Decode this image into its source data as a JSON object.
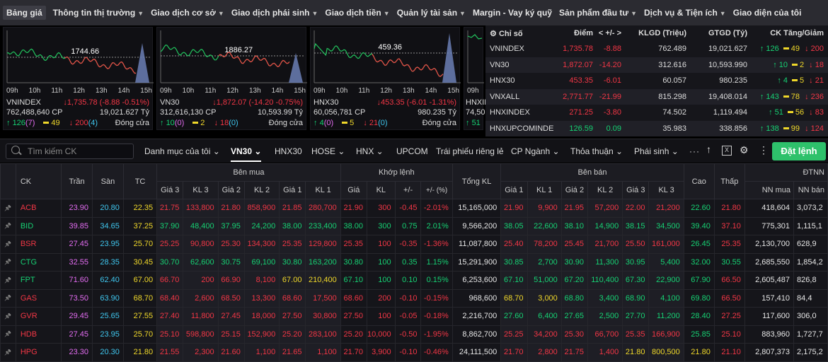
{
  "nav": [
    {
      "label": "Bảng giá",
      "caret": false,
      "active": true
    },
    {
      "label": "Thông tin thị trường",
      "caret": true
    },
    {
      "label": "Giao dịch cơ sở",
      "caret": true
    },
    {
      "label": "Giao dịch phái sinh",
      "caret": true
    },
    {
      "label": "Giao dịch tiền",
      "caret": true
    },
    {
      "label": "Quản lý tài sản",
      "caret": true
    },
    {
      "label": "Margin - Vay ký quỹ",
      "caret": false
    },
    {
      "label": "Sản phẩm đầu tư",
      "caret": true
    },
    {
      "label": "Dịch vụ & Tiện ích",
      "caret": true
    },
    {
      "label": "Giao diện của tôi",
      "caret": false
    }
  ],
  "charts": [
    {
      "ref_label": "1744.66",
      "hours": [
        "09h",
        "10h",
        "11h",
        "12h",
        "13h",
        "14h",
        "15h"
      ],
      "name": "VNINDEX",
      "change": "1,735.78 (-8.88 -0.51%)",
      "volume": "762,488,640 CP",
      "value": "19,021.627 Tỷ",
      "up": "126",
      "up_ce": "(7)",
      "ref_count": "49",
      "down": "200",
      "down_fl": "(4)",
      "status": "Đóng cửa"
    },
    {
      "ref_label": "1886.27",
      "hours": [
        "09h",
        "10h",
        "11h",
        "12h",
        "13h",
        "14h",
        "15h"
      ],
      "name": "VN30",
      "change": "1,872.07 (-14.20 -0.75%)",
      "volume": "312,616,130 CP",
      "value": "10,593.99 Tỷ",
      "up": "10",
      "up_ce": "(0)",
      "ref_count": "2",
      "down": "18",
      "down_fl": "(0)",
      "status": "Đóng cửa"
    },
    {
      "ref_label": "459.36",
      "hours": [
        "09h",
        "10h",
        "11h",
        "12h",
        "13h",
        "14h",
        "15h"
      ],
      "name": "HNX30",
      "change": "453.35 (-6.01 -1.31%)",
      "volume": "60,056,781 CP",
      "value": "980.235 Tỷ",
      "up": "4",
      "up_ce": "(0)",
      "ref_count": "5",
      "down": "21",
      "down_fl": "(0)",
      "status": "Đóng cửa"
    },
    {
      "hours": [
        "09h"
      ],
      "name": "HNXIN",
      "volume": "74,50",
      "up": "51"
    }
  ],
  "index_table": {
    "headers": {
      "name": "Chỉ số",
      "point": "Điểm",
      "change": "< +/- >",
      "kl": "KLGD (Triệu)",
      "gt": "GTGD (Tỷ)",
      "ck": "CK Tăng/Giảm"
    },
    "rows": [
      {
        "name": "VNINDEX",
        "point": "1,735.78",
        "change": "-8.88",
        "kl": "762.489",
        "gt": "19,021.627",
        "up": "126",
        "ref": "49",
        "down": "200",
        "dir": "dn"
      },
      {
        "name": "VN30",
        "point": "1,872.07",
        "change": "-14.20",
        "kl": "312.616",
        "gt": "10,593.990",
        "up": "10",
        "ref": "2",
        "down": "18",
        "dir": "dn"
      },
      {
        "name": "HNX30",
        "point": "453.35",
        "change": "-6.01",
        "kl": "60.057",
        "gt": "980.235",
        "up": "4",
        "ref": "5",
        "down": "21",
        "dir": "dn"
      },
      {
        "name": "VNXALL",
        "point": "2,771.77",
        "change": "-21.99",
        "kl": "815.298",
        "gt": "19,408.014",
        "up": "143",
        "ref": "78",
        "down": "236",
        "dir": "dn"
      },
      {
        "name": "HNXINDEX",
        "point": "271.25",
        "change": "-3.80",
        "kl": "74.502",
        "gt": "1,119.494",
        "up": "51",
        "ref": "56",
        "down": "83",
        "dir": "dn"
      },
      {
        "name": "HNXUPCOMINDE",
        "point": "126.59",
        "change": "0.09",
        "kl": "35.983",
        "gt": "338.856",
        "up": "138",
        "ref": "99",
        "down": "124",
        "dir": "up"
      }
    ]
  },
  "toolbar": {
    "search_placeholder": "Tìm kiếm CK",
    "order": "Đặt lệnh",
    "tabs": [
      {
        "label": "Danh mục của tôi",
        "caret": true
      },
      {
        "label": "VN30",
        "caret": true,
        "active": true
      },
      {
        "label": "HNX30"
      },
      {
        "label": "HOSE",
        "caret": true
      },
      {
        "label": "HNX",
        "caret": true
      },
      {
        "label": "UPCOM"
      },
      {
        "label": "Trái phiếu riêng lẻ"
      },
      {
        "label": "CP Ngành",
        "caret": true
      },
      {
        "label": "Thỏa thuận",
        "caret": true
      },
      {
        "label": "Phái sinh",
        "caret": true
      }
    ],
    "more": "···"
  },
  "board": {
    "h1": {
      "ck": "CK",
      "tran": "Trần",
      "san": "Sàn",
      "tc": "TC",
      "buy": "Bên mua",
      "match": "Khớp lệnh",
      "total": "Tổng KL",
      "sell": "Bên bán",
      "high": "Cao",
      "low": "Thấp",
      "nn": "ĐTNN"
    },
    "h2": {
      "g3": "Giá 3",
      "kl3": "KL 3",
      "g2": "Giá 2",
      "kl2": "KL 2",
      "g1": "Giá 1",
      "kl1": "KL 1",
      "mg": "Giá",
      "mkl": "KL",
      "chg": "+/-",
      "pct": "+/- (%)",
      "sg1": "Giá 1",
      "skl1": "KL 1",
      "sg2": "Giá 2",
      "skl2": "KL 2",
      "sg3": "Giá 3",
      "skl3": "KL 3",
      "nnbuy": "NN mua",
      "nnsell": "NN bán"
    },
    "rows": [
      {
        "ck": "ACB",
        "tran": "23.90",
        "san": "20.80",
        "tc": "22.35",
        "b": [
          [
            "21.75",
            "133,800",
            "dn"
          ],
          [
            "21.80",
            "858,900",
            "dn"
          ],
          [
            "21.85",
            "280,700",
            "dn"
          ]
        ],
        "m": [
          "21.90",
          "300",
          "-0.45",
          "-2.01%",
          "dn"
        ],
        "total": "15,165,000",
        "s": [
          [
            "21.90",
            "9,900",
            "dn"
          ],
          [
            "21.95",
            "57,200",
            "dn"
          ],
          [
            "22.00",
            "21,200",
            "dn"
          ]
        ],
        "high": [
          "22.60",
          "up"
        ],
        "low": [
          "21.80",
          "dn"
        ],
        "nnb": "418,604",
        "nns": "3,073,2"
      },
      {
        "ck": "BID",
        "tran": "39.85",
        "san": "34.65",
        "tc": "37.25",
        "b": [
          [
            "37.90",
            "48,400",
            "up"
          ],
          [
            "37.95",
            "24,200",
            "up"
          ],
          [
            "38.00",
            "233,400",
            "up"
          ]
        ],
        "m": [
          "38.00",
          "300",
          "0.75",
          "2.01%",
          "up"
        ],
        "total": "9,566,200",
        "s": [
          [
            "38.05",
            "22,600",
            "up"
          ],
          [
            "38.10",
            "14,900",
            "up"
          ],
          [
            "38.15",
            "34,500",
            "up"
          ]
        ],
        "high": [
          "39.40",
          "up"
        ],
        "low": [
          "37.10",
          "dn"
        ],
        "nnb": "775,301",
        "nns": "1,115,1"
      },
      {
        "ck": "BSR",
        "tran": "27.45",
        "san": "23.95",
        "tc": "25.70",
        "b": [
          [
            "25.25",
            "90,800",
            "dn"
          ],
          [
            "25.30",
            "134,300",
            "dn"
          ],
          [
            "25.35",
            "129,800",
            "dn"
          ]
        ],
        "m": [
          "25.35",
          "100",
          "-0.35",
          "-1.36%",
          "dn"
        ],
        "total": "11,087,800",
        "s": [
          [
            "25.40",
            "78,200",
            "dn"
          ],
          [
            "25.45",
            "21,700",
            "dn"
          ],
          [
            "25.50",
            "161,000",
            "dn"
          ]
        ],
        "high": [
          "26.45",
          "up"
        ],
        "low": [
          "25.35",
          "dn"
        ],
        "nnb": "2,130,700",
        "nns": "628,9"
      },
      {
        "ck": "CTG",
        "tran": "32.55",
        "san": "28.35",
        "tc": "30.45",
        "b": [
          [
            "30.70",
            "62,600",
            "up"
          ],
          [
            "30.75",
            "69,100",
            "up"
          ],
          [
            "30.80",
            "163,200",
            "up"
          ]
        ],
        "m": [
          "30.80",
          "100",
          "0.35",
          "1.15%",
          "up"
        ],
        "total": "15,291,900",
        "s": [
          [
            "30.85",
            "2,700",
            "up"
          ],
          [
            "30.90",
            "11,300",
            "up"
          ],
          [
            "30.95",
            "5,400",
            "up"
          ]
        ],
        "high": [
          "32.00",
          "up"
        ],
        "low": [
          "30.55",
          "up"
        ],
        "nnb": "2,685,550",
        "nns": "1,854,2"
      },
      {
        "ck": "FPT",
        "tran": "71.60",
        "san": "62.40",
        "tc": "67.00",
        "b": [
          [
            "66.70",
            "200",
            "dn"
          ],
          [
            "66.90",
            "8,100",
            "dn"
          ],
          [
            "67.00",
            "210,400",
            "ref"
          ]
        ],
        "m": [
          "67.10",
          "100",
          "0.10",
          "0.15%",
          "up"
        ],
        "total": "6,253,600",
        "s": [
          [
            "67.10",
            "51,000",
            "up"
          ],
          [
            "67.20",
            "110,400",
            "up"
          ],
          [
            "67.30",
            "22,900",
            "up"
          ]
        ],
        "high": [
          "67.90",
          "up"
        ],
        "low": [
          "66.50",
          "dn"
        ],
        "nnb": "2,605,487",
        "nns": "826,8"
      },
      {
        "ck": "GAS",
        "tran": "73.50",
        "san": "63.90",
        "tc": "68.70",
        "b": [
          [
            "68.40",
            "2,600",
            "dn"
          ],
          [
            "68.50",
            "13,300",
            "dn"
          ],
          [
            "68.60",
            "17,500",
            "dn"
          ]
        ],
        "m": [
          "68.60",
          "200",
          "-0.10",
          "-0.15%",
          "dn"
        ],
        "total": "968,600",
        "s": [
          [
            "68.70",
            "3,000",
            "ref"
          ],
          [
            "68.80",
            "3,400",
            "up"
          ],
          [
            "68.90",
            "4,100",
            "up"
          ]
        ],
        "high": [
          "69.80",
          "up"
        ],
        "low": [
          "66.50",
          "dn"
        ],
        "nnb": "157,410",
        "nns": "84,4"
      },
      {
        "ck": "GVR",
        "tran": "29.45",
        "san": "25.65",
        "tc": "27.55",
        "b": [
          [
            "27.40",
            "11,800",
            "dn"
          ],
          [
            "27.45",
            "18,000",
            "dn"
          ],
          [
            "27.50",
            "30,800",
            "dn"
          ]
        ],
        "m": [
          "27.50",
          "100",
          "-0.05",
          "-0.18%",
          "dn"
        ],
        "total": "2,216,700",
        "s": [
          [
            "27.60",
            "6,400",
            "up"
          ],
          [
            "27.65",
            "2,500",
            "up"
          ],
          [
            "27.70",
            "11,200",
            "up"
          ]
        ],
        "high": [
          "28.40",
          "up"
        ],
        "low": [
          "27.25",
          "dn"
        ],
        "nnb": "117,600",
        "nns": "306,0"
      },
      {
        "ck": "HDB",
        "tran": "27.45",
        "san": "23.95",
        "tc": "25.70",
        "b": [
          [
            "25.10",
            "598,800",
            "dn"
          ],
          [
            "25.15",
            "152,900",
            "dn"
          ],
          [
            "25.20",
            "283,100",
            "dn"
          ]
        ],
        "m": [
          "25.20",
          "10,000",
          "-0.50",
          "-1.95%",
          "dn"
        ],
        "total": "8,862,700",
        "s": [
          [
            "25.25",
            "34,200",
            "dn"
          ],
          [
            "25.30",
            "66,700",
            "dn"
          ],
          [
            "25.35",
            "166,900",
            "dn"
          ]
        ],
        "high": [
          "25.85",
          "up"
        ],
        "low": [
          "25.10",
          "dn"
        ],
        "nnb": "883,960",
        "nns": "1,727,7"
      },
      {
        "ck": "HPG",
        "tran": "23.30",
        "san": "20.30",
        "tc": "21.80",
        "b": [
          [
            "21.55",
            "2,300",
            "dn"
          ],
          [
            "21.60",
            "1,100",
            "dn"
          ],
          [
            "21.65",
            "1,100",
            "dn"
          ]
        ],
        "m": [
          "21.70",
          "3,900",
          "-0.10",
          "-0.46%",
          "dn"
        ],
        "total": "24,111,500",
        "s": [
          [
            "21.70",
            "2,800",
            "dn"
          ],
          [
            "21.75",
            "1,400",
            "dn"
          ],
          [
            "21.80",
            "800,500",
            "ref"
          ]
        ],
        "high": [
          "21.80",
          "ref"
        ],
        "low": [
          "21.10",
          "dn"
        ],
        "nnb": "2,807,373",
        "nns": "2,175,2"
      }
    ]
  }
}
